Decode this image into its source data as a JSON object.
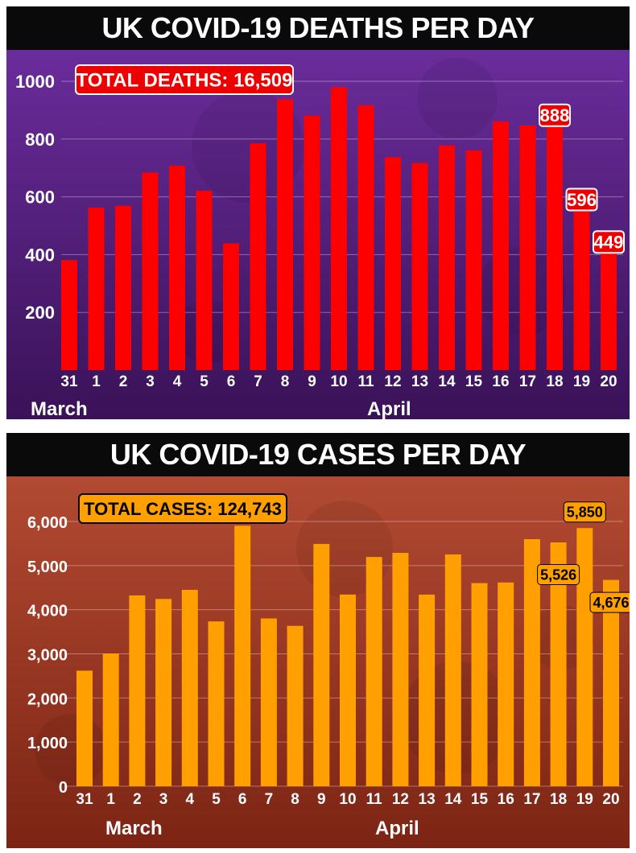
{
  "chart_data": [
    {
      "type": "bar",
      "title": "UK COVID-19 DEATHS PER DAY",
      "total_label": "TOTAL DEATHS: 16,509",
      "categories": [
        "31",
        "1",
        "2",
        "3",
        "4",
        "5",
        "6",
        "7",
        "8",
        "9",
        "10",
        "11",
        "12",
        "13",
        "14",
        "15",
        "16",
        "17",
        "18",
        "19",
        "20"
      ],
      "month_labels": [
        "March",
        "April"
      ],
      "values": [
        381,
        563,
        569,
        684,
        708,
        621,
        439,
        786,
        938,
        881,
        980,
        917,
        737,
        717,
        778,
        761,
        861,
        847,
        888,
        596,
        449
      ],
      "ylim": [
        0,
        1000
      ],
      "yticks": [
        200,
        400,
        600,
        800,
        1000
      ],
      "ytick_labels": [
        "200",
        "400",
        "600",
        "800",
        "1000"
      ],
      "data_labels": [
        {
          "index": 18,
          "text": "888"
        },
        {
          "index": 19,
          "text": "596"
        },
        {
          "index": 20,
          "text": "449"
        }
      ],
      "xlabel": "",
      "ylabel": "",
      "colors": {
        "bar": "#ff0000",
        "label_bg": "#ee0000",
        "bg_top": "#6a2c9b",
        "bg_bottom": "#3a1258"
      }
    },
    {
      "type": "bar",
      "title": "UK COVID-19 CASES PER DAY",
      "total_label": "TOTAL CASES: 124,743",
      "categories": [
        "31",
        "1",
        "2",
        "3",
        "4",
        "5",
        "6",
        "7",
        "8",
        "9",
        "10",
        "11",
        "12",
        "13",
        "14",
        "15",
        "16",
        "17",
        "18",
        "19",
        "20"
      ],
      "month_labels": [
        "March",
        "April"
      ],
      "values": [
        2619,
        3009,
        4324,
        4244,
        4450,
        3735,
        5903,
        3802,
        3634,
        5491,
        4344,
        5195,
        5288,
        4342,
        5252,
        4603,
        4617,
        5599,
        5526,
        5850,
        4676
      ],
      "ylim": [
        0,
        6000
      ],
      "yticks": [
        0,
        1000,
        2000,
        3000,
        4000,
        5000,
        6000
      ],
      "ytick_labels": [
        "0",
        "1,000",
        "2,000",
        "3,000",
        "4,000",
        "5,000",
        "6,000"
      ],
      "data_labels": [
        {
          "index": 18,
          "text": "5,526"
        },
        {
          "index": 19,
          "text": "5,850"
        },
        {
          "index": 20,
          "text": "4,676"
        }
      ],
      "xlabel": "",
      "ylabel": "",
      "colors": {
        "bar": "#ffa000",
        "label_bg": "#ffa000",
        "bg_top": "#b24a32",
        "bg_bottom": "#7c2414"
      }
    }
  ]
}
